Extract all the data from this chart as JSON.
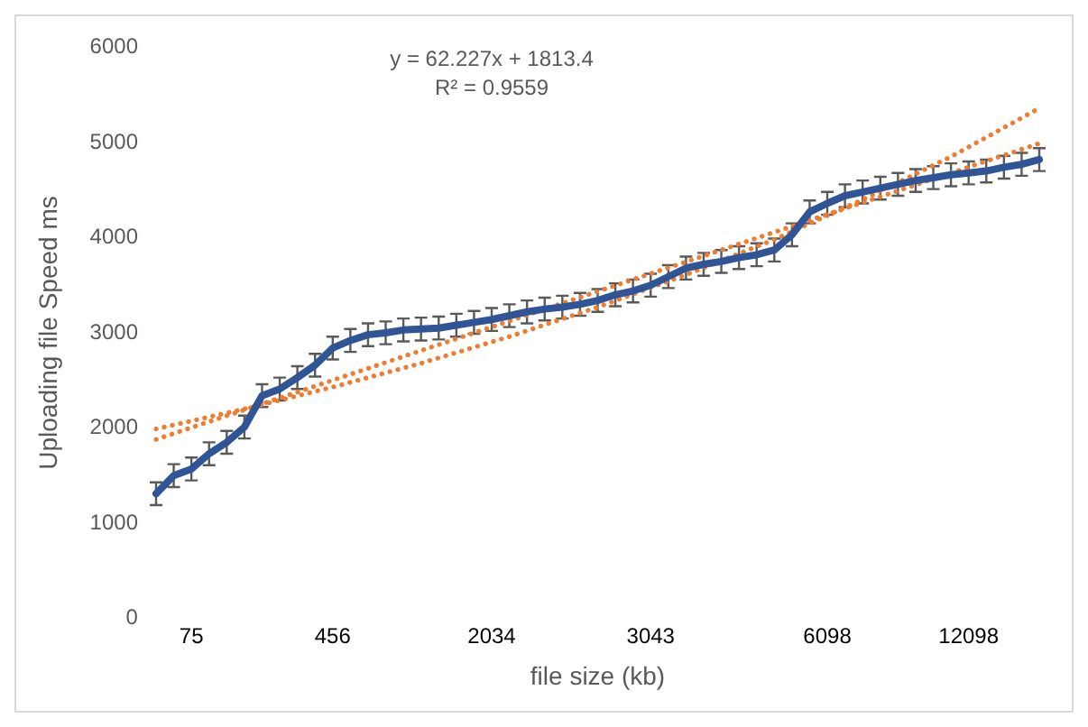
{
  "chart_data": {
    "type": "line",
    "xlabel": "file size (kb)",
    "ylabel": "Uploading file Speed ms",
    "annotations": [
      "y = 62.227x + 1813.4",
      "R² = 0.9559"
    ],
    "categories": [
      null,
      null,
      "75",
      null,
      null,
      null,
      null,
      null,
      null,
      null,
      "456",
      null,
      null,
      null,
      null,
      null,
      null,
      null,
      null,
      "2034",
      null,
      null,
      null,
      null,
      null,
      null,
      null,
      null,
      "3043",
      null,
      null,
      null,
      null,
      null,
      null,
      null,
      null,
      null,
      "6098",
      null,
      null,
      null,
      null,
      null,
      null,
      null,
      "12098",
      null,
      null,
      null,
      null
    ],
    "ylim": [
      0,
      6000
    ],
    "yticks": [
      0,
      1000,
      2000,
      3000,
      4000,
      5000,
      6000
    ],
    "grid": false,
    "legend": false,
    "marker": "none",
    "series": [
      {
        "type": "line",
        "color": "#2f5597",
        "line_style": "solid",
        "values": [
          1310,
          1500,
          1570,
          1730,
          1850,
          2010,
          2340,
          2410,
          2530,
          2660,
          2840,
          2920,
          2980,
          3000,
          3030,
          3040,
          3050,
          3080,
          3110,
          3140,
          3180,
          3220,
          3250,
          3270,
          3300,
          3340,
          3400,
          3440,
          3500,
          3590,
          3680,
          3720,
          3750,
          3790,
          3820,
          3870,
          4030,
          4270,
          4360,
          4440,
          4480,
          4520,
          4560,
          4600,
          4630,
          4660,
          4680,
          4700,
          4740,
          4770,
          4820
        ],
        "errors": [
          120,
          120,
          120,
          120,
          120,
          120,
          120,
          120,
          120,
          120,
          120,
          120,
          120,
          120,
          120,
          120,
          120,
          120,
          120,
          120,
          120,
          120,
          120,
          120,
          120,
          120,
          120,
          120,
          120,
          120,
          120,
          120,
          120,
          120,
          120,
          120,
          120,
          120,
          120,
          120,
          120,
          120,
          120,
          120,
          120,
          120,
          120,
          120,
          120,
          120,
          120
        ]
      },
      {
        "type": "line",
        "color": "#ed7d31",
        "line_style": "dotted",
        "values": [
          1880,
          null,
          null,
          null,
          null,
          null,
          null,
          null,
          null,
          null,
          null,
          null,
          null,
          null,
          null,
          null,
          null,
          null,
          null,
          null,
          null,
          null,
          null,
          null,
          null,
          null,
          null,
          null,
          null,
          null,
          null,
          null,
          null,
          null,
          null,
          null,
          null,
          null,
          null,
          null,
          null,
          null,
          null,
          null,
          null,
          null,
          null,
          null,
          null,
          null,
          4990
        ]
      },
      {
        "type": "line",
        "color": "#ed7d31",
        "line_style": "dotted",
        "values": [
          1990,
          null,
          null,
          null,
          null,
          2200,
          null,
          null,
          null,
          null,
          2430,
          null,
          null,
          null,
          null,
          2680,
          null,
          null,
          null,
          null,
          2960,
          null,
          null,
          null,
          null,
          3270,
          null,
          null,
          null,
          null,
          3610,
          null,
          null,
          null,
          null,
          3980,
          null,
          null,
          null,
          null,
          4400,
          null,
          null,
          null,
          null,
          4850,
          null,
          null,
          null,
          null,
          5360
        ]
      }
    ]
  }
}
